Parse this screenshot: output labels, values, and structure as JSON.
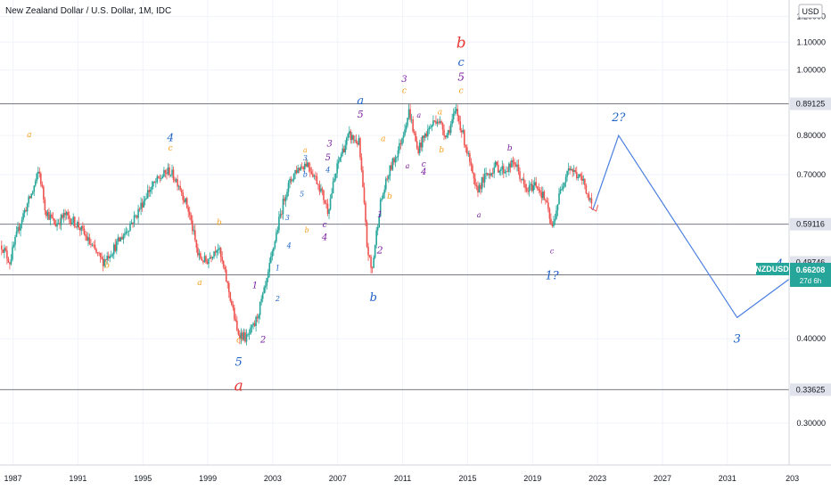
{
  "chart_data": {
    "type": "candlestick",
    "title": "New Zealand Dollar / U.S. Dollar, 1M, IDC",
    "currency_label": "USD",
    "symbol": "NZDUSD",
    "last_price": "0.66208",
    "countdown": "27d 6h",
    "x_axis_years": [
      "1987",
      "1991",
      "1995",
      "1999",
      "2003",
      "2007",
      "2011",
      "2015",
      "2019",
      "2023",
      "2027",
      "2031",
      "203"
    ],
    "y_ticks": [
      "1.20000",
      "1.10000",
      "1.00000",
      "0.80000",
      "0.70000",
      "0.40000",
      "0.30000"
    ],
    "ylim": [
      0.26,
      1.27
    ],
    "xlim": [
      1986.2,
      2034.8
    ],
    "scale": "log",
    "horizontal_levels": [
      {
        "value": 0.89125,
        "label": "0.89125"
      },
      {
        "value": 0.59116,
        "label": "0.59116"
      },
      {
        "value": 0.49746,
        "label": "0.49746"
      },
      {
        "value": 0.33625,
        "label": "0.33625"
      }
    ],
    "extra_price_label": "0.49746",
    "price_path": [
      [
        1986.3,
        0.55
      ],
      [
        1986.8,
        0.52
      ],
      [
        1987.5,
        0.6
      ],
      [
        1988.2,
        0.66
      ],
      [
        1988.6,
        0.71
      ],
      [
        1989.0,
        0.62
      ],
      [
        1989.6,
        0.59
      ],
      [
        1990.2,
        0.61
      ],
      [
        1991.0,
        0.59
      ],
      [
        1991.8,
        0.55
      ],
      [
        1992.5,
        0.52
      ],
      [
        1993.1,
        0.54
      ],
      [
        1993.8,
        0.57
      ],
      [
        1994.6,
        0.61
      ],
      [
        1995.3,
        0.66
      ],
      [
        1996.0,
        0.69
      ],
      [
        1996.6,
        0.71
      ],
      [
        1997.2,
        0.68
      ],
      [
        1997.8,
        0.62
      ],
      [
        1998.4,
        0.53
      ],
      [
        1998.9,
        0.52
      ],
      [
        1999.6,
        0.55
      ],
      [
        2000.3,
        0.47
      ],
      [
        2000.8,
        0.41
      ],
      [
        2001.4,
        0.4
      ],
      [
        2001.9,
        0.42
      ],
      [
        2002.6,
        0.48
      ],
      [
        2003.2,
        0.57
      ],
      [
        2003.8,
        0.66
      ],
      [
        2004.4,
        0.71
      ],
      [
        2005.1,
        0.73
      ],
      [
        2005.8,
        0.68
      ],
      [
        2006.4,
        0.62
      ],
      [
        2007.1,
        0.74
      ],
      [
        2007.7,
        0.8
      ],
      [
        2008.3,
        0.78
      ],
      [
        2008.8,
        0.55
      ],
      [
        2009.1,
        0.5
      ],
      [
        2009.6,
        0.63
      ],
      [
        2010.2,
        0.71
      ],
      [
        2010.8,
        0.77
      ],
      [
        2011.4,
        0.87
      ],
      [
        2011.9,
        0.76
      ],
      [
        2012.5,
        0.81
      ],
      [
        2013.1,
        0.85
      ],
      [
        2013.7,
        0.8
      ],
      [
        2014.3,
        0.87
      ],
      [
        2014.9,
        0.77
      ],
      [
        2015.5,
        0.66
      ],
      [
        2016.0,
        0.69
      ],
      [
        2016.7,
        0.72
      ],
      [
        2017.3,
        0.71
      ],
      [
        2017.9,
        0.73
      ],
      [
        2018.6,
        0.66
      ],
      [
        2019.2,
        0.68
      ],
      [
        2019.8,
        0.64
      ],
      [
        2020.2,
        0.58
      ],
      [
        2020.7,
        0.66
      ],
      [
        2021.2,
        0.72
      ],
      [
        2021.7,
        0.7
      ],
      [
        2022.2,
        0.68
      ],
      [
        2022.5,
        0.64
      ],
      [
        2022.7,
        0.62
      ]
    ],
    "projection": [
      [
        2022.7,
        0.62
      ],
      [
        2024.3,
        0.8
      ],
      [
        2031.6,
        0.43
      ],
      [
        2034.8,
        0.49
      ]
    ],
    "wave_labels": [
      {
        "text": "a",
        "x": 1988.0,
        "y": 0.795,
        "color": "#f59f1b",
        "size": 9
      },
      {
        "text": "b",
        "x": 1992.8,
        "y": 0.51,
        "color": "#f59f1b",
        "size": 9
      },
      {
        "text": "4",
        "x": 1996.7,
        "y": 0.785,
        "color": "#1e63c6",
        "size": 12
      },
      {
        "text": "c",
        "x": 1996.7,
        "y": 0.76,
        "color": "#f59f1b",
        "size": 9
      },
      {
        "text": "a",
        "x": 1998.5,
        "y": 0.48,
        "color": "#f59f1b",
        "size": 9
      },
      {
        "text": "b",
        "x": 1999.7,
        "y": 0.59,
        "color": "#f59f1b",
        "size": 9
      },
      {
        "text": "c",
        "x": 2000.9,
        "y": 0.395,
        "color": "#f59f1b",
        "size": 9
      },
      {
        "text": "5",
        "x": 2000.9,
        "y": 0.365,
        "color": "#1e63c6",
        "size": 13
      },
      {
        "text": "a",
        "x": 2000.9,
        "y": 0.335,
        "color": "#e53935",
        "size": 17
      },
      {
        "text": "1",
        "x": 2001.9,
        "y": 0.475,
        "color": "#7b1fa2",
        "size": 10
      },
      {
        "text": "2",
        "x": 2002.4,
        "y": 0.395,
        "color": "#7b1fa2",
        "size": 10
      },
      {
        "text": "1",
        "x": 2003.3,
        "y": 0.505,
        "color": "#1e63c6",
        "size": 8
      },
      {
        "text": "2",
        "x": 2003.3,
        "y": 0.455,
        "color": "#1e63c6",
        "size": 8
      },
      {
        "text": "3",
        "x": 2003.9,
        "y": 0.6,
        "color": "#1e63c6",
        "size": 8
      },
      {
        "text": "4",
        "x": 2004.0,
        "y": 0.545,
        "color": "#1e63c6",
        "size": 8
      },
      {
        "text": "5",
        "x": 2004.8,
        "y": 0.65,
        "color": "#1e63c6",
        "size": 8
      },
      {
        "text": "b",
        "x": 2005.0,
        "y": 0.695,
        "color": "#1e63c6",
        "size": 8
      },
      {
        "text": "a",
        "x": 2005.0,
        "y": 0.755,
        "color": "#f59f1b",
        "size": 8
      },
      {
        "text": "3",
        "x": 2005.0,
        "y": 0.735,
        "color": "#1e63c6",
        "size": 8
      },
      {
        "text": "b",
        "x": 2005.1,
        "y": 0.575,
        "color": "#f59f1b",
        "size": 8
      },
      {
        "text": "4",
        "x": 2006.4,
        "y": 0.705,
        "color": "#1e63c6",
        "size": 8
      },
      {
        "text": "3",
        "x": 2006.5,
        "y": 0.77,
        "color": "#7b1fa2",
        "size": 10
      },
      {
        "text": "5",
        "x": 2006.4,
        "y": 0.735,
        "color": "#7b1fa2",
        "size": 10
      },
      {
        "text": "c",
        "x": 2006.2,
        "y": 0.585,
        "color": "#7b1fa2",
        "size": 9
      },
      {
        "text": "4",
        "x": 2006.2,
        "y": 0.56,
        "color": "#7b1fa2",
        "size": 10
      },
      {
        "text": "a",
        "x": 2008.4,
        "y": 0.89,
        "color": "#1e63c6",
        "size": 13
      },
      {
        "text": "5",
        "x": 2008.4,
        "y": 0.85,
        "color": "#7b1fa2",
        "size": 11
      },
      {
        "text": "1",
        "x": 2009.6,
        "y": 0.605,
        "color": "#7b1fa2",
        "size": 10
      },
      {
        "text": "2",
        "x": 2009.6,
        "y": 0.535,
        "color": "#7b1fa2",
        "size": 11
      },
      {
        "text": "b",
        "x": 2009.2,
        "y": 0.455,
        "color": "#1e63c6",
        "size": 13
      },
      {
        "text": "a",
        "x": 2009.8,
        "y": 0.785,
        "color": "#f59f1b",
        "size": 9
      },
      {
        "text": "b",
        "x": 2010.2,
        "y": 0.645,
        "color": "#f59f1b",
        "size": 9
      },
      {
        "text": "3",
        "x": 2011.1,
        "y": 0.96,
        "color": "#7b1fa2",
        "size": 10
      },
      {
        "text": "c",
        "x": 2011.1,
        "y": 0.925,
        "color": "#f59f1b",
        "size": 9
      },
      {
        "text": "a",
        "x": 2012.0,
        "y": 0.85,
        "color": "#7b1fa2",
        "size": 8
      },
      {
        "text": "a",
        "x": 2011.3,
        "y": 0.715,
        "color": "#7b1fa2",
        "size": 8
      },
      {
        "text": "c",
        "x": 2012.3,
        "y": 0.72,
        "color": "#7b1fa2",
        "size": 9
      },
      {
        "text": "4",
        "x": 2012.3,
        "y": 0.7,
        "color": "#7b1fa2",
        "size": 10
      },
      {
        "text": "a",
        "x": 2013.3,
        "y": 0.86,
        "color": "#f59f1b",
        "size": 9
      },
      {
        "text": "b",
        "x": 2013.4,
        "y": 0.755,
        "color": "#f59f1b",
        "size": 9
      },
      {
        "text": "b",
        "x": 2014.6,
        "y": 1.08,
        "color": "#e53935",
        "size": 17
      },
      {
        "text": "c",
        "x": 2014.6,
        "y": 1.015,
        "color": "#1e63c6",
        "size": 13
      },
      {
        "text": "5",
        "x": 2014.6,
        "y": 0.965,
        "color": "#7b1fa2",
        "size": 12
      },
      {
        "text": "c",
        "x": 2014.6,
        "y": 0.925,
        "color": "#f59f1b",
        "size": 9
      },
      {
        "text": "a",
        "x": 2015.7,
        "y": 0.605,
        "color": "#7b1fa2",
        "size": 8
      },
      {
        "text": "b",
        "x": 2017.6,
        "y": 0.76,
        "color": "#7b1fa2",
        "size": 9
      },
      {
        "text": "c",
        "x": 2020.2,
        "y": 0.535,
        "color": "#7b1fa2",
        "size": 8
      },
      {
        "text": "1?",
        "x": 2020.2,
        "y": 0.49,
        "color": "#1e63c6",
        "size": 13
      },
      {
        "text": "2?",
        "x": 2024.3,
        "y": 0.84,
        "color": "#1e63c6",
        "size": 13
      },
      {
        "text": "3",
        "x": 2031.6,
        "y": 0.395,
        "color": "#1e63c6",
        "size": 13
      },
      {
        "text": "4",
        "x": 2034.2,
        "y": 0.51,
        "color": "#1e63c6",
        "size": 13
      }
    ]
  }
}
